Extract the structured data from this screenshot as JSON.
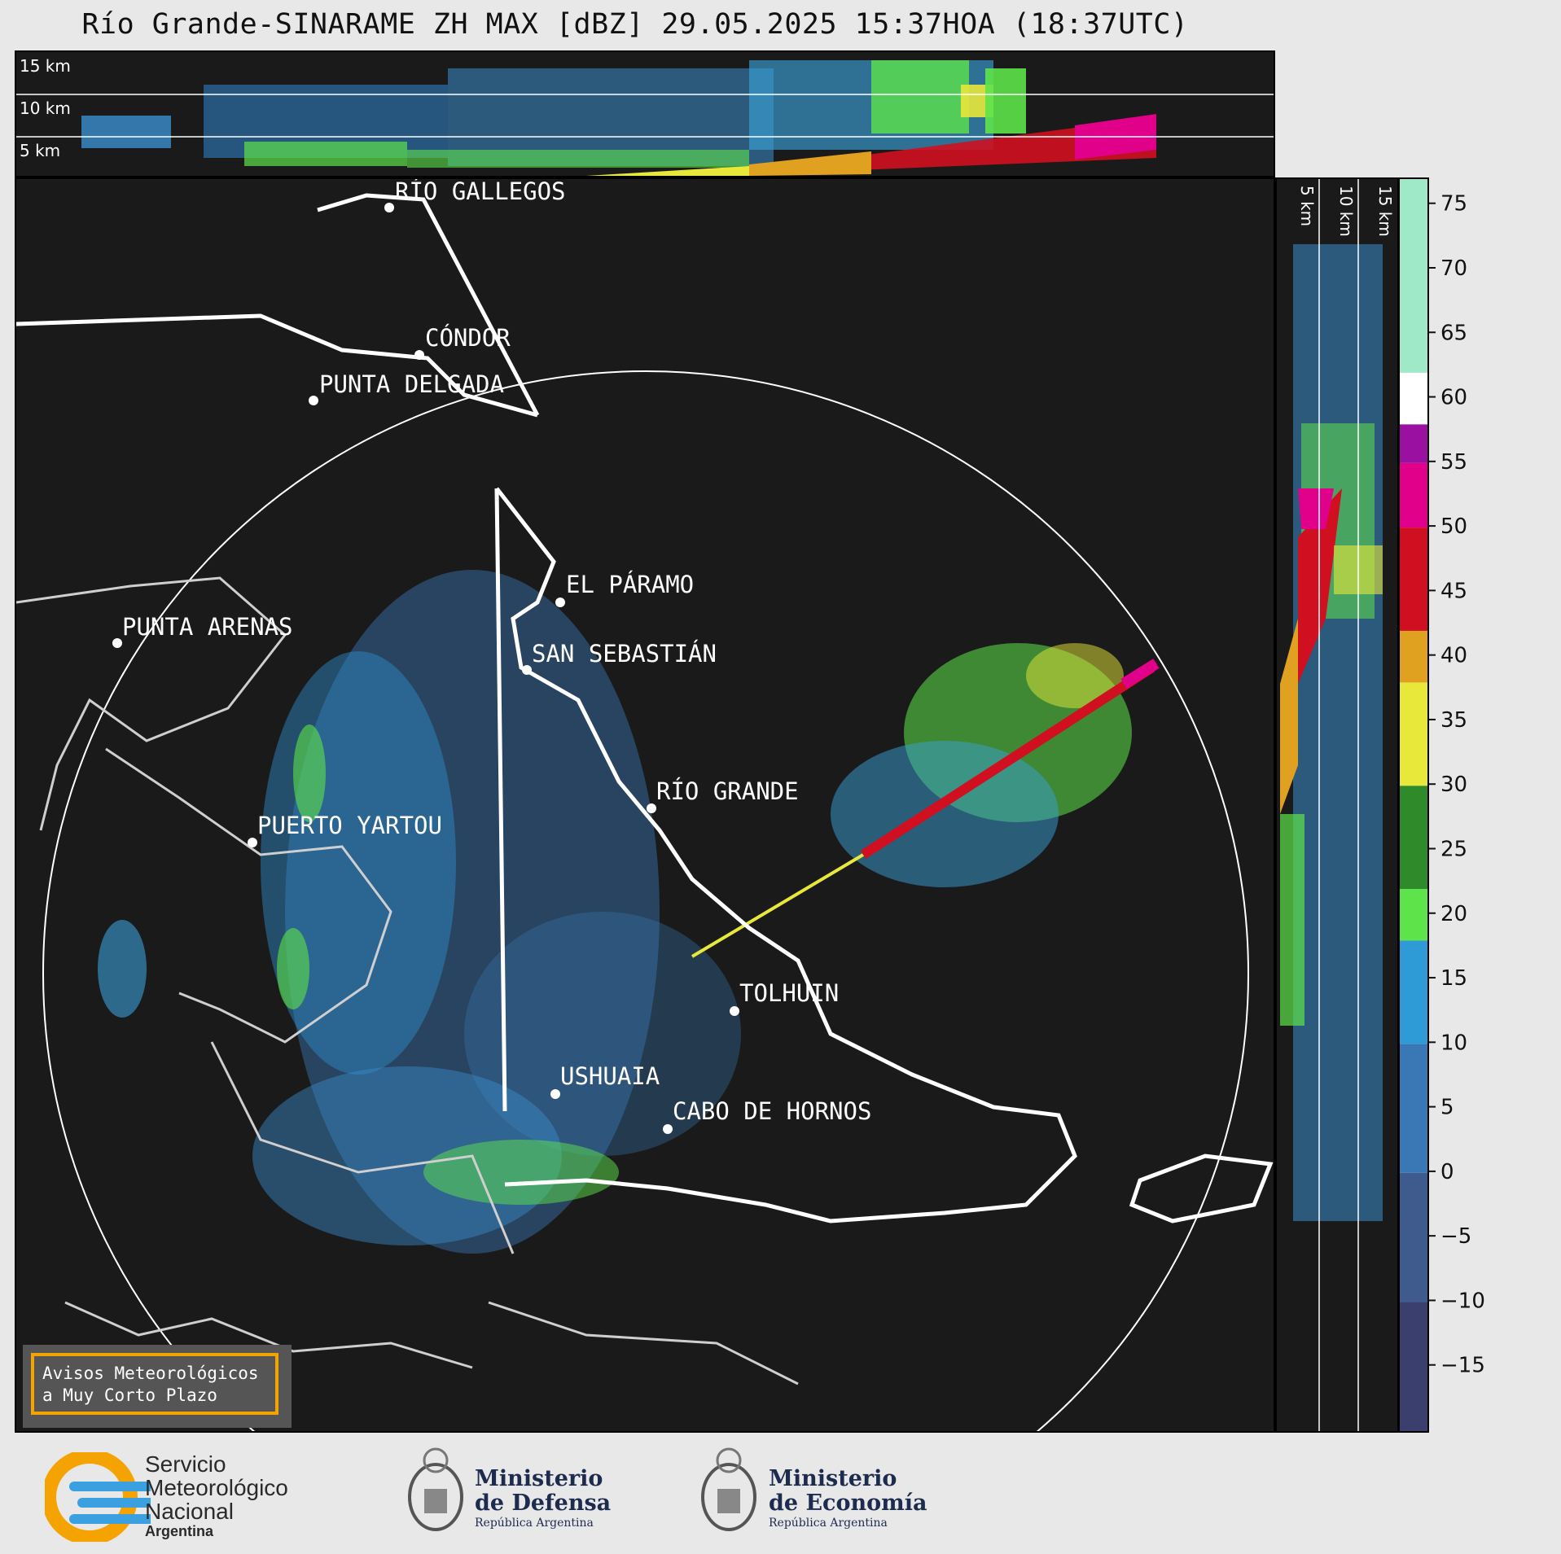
{
  "title": "Río Grande-SINARAME ZH MAX [dBZ] 29.05.2025 15:37HOA (18:37UTC)",
  "top_panel": {
    "km_labels": [
      "15 km",
      "10 km",
      "5 km"
    ]
  },
  "side_panel": {
    "km_labels": [
      "5 km",
      "10 km",
      "15 km"
    ]
  },
  "map": {
    "places": [
      {
        "name": "RÍO GALLEGOS"
      },
      {
        "name": "CÓNDOR"
      },
      {
        "name": "PUNTA DELGADA"
      },
      {
        "name": "PUNTA ARENAS"
      },
      {
        "name": "EL PÁRAMO"
      },
      {
        "name": "SAN SEBASTIÁN"
      },
      {
        "name": "RÍO GRANDE"
      },
      {
        "name": "PUERTO YARTOU"
      },
      {
        "name": "TOLHUIN"
      },
      {
        "name": "USHUAIA"
      },
      {
        "name": "CABO DE HORNOS"
      }
    ]
  },
  "colorbar": {
    "unit": "dBZ",
    "min": -20,
    "max": 77,
    "ticks": [
      75,
      70,
      65,
      60,
      55,
      50,
      45,
      40,
      35,
      30,
      25,
      20,
      15,
      10,
      5,
      0,
      -5,
      -10,
      -15
    ],
    "tick_labels": [
      "75",
      "70",
      "65",
      "60",
      "55",
      "50",
      "45",
      "40",
      "35",
      "30",
      "25",
      "20",
      "15",
      "10",
      "5",
      "0",
      "−5",
      "−10",
      "−15"
    ],
    "stops": [
      {
        "from": -20,
        "to": -10,
        "color": "#3a3f6e"
      },
      {
        "from": -10,
        "to": 0,
        "color": "#3f5a8c"
      },
      {
        "from": 0,
        "to": 10,
        "color": "#3a78b5"
      },
      {
        "from": 10,
        "to": 18,
        "color": "#2f9bd6"
      },
      {
        "from": 18,
        "to": 22,
        "color": "#5ee34a"
      },
      {
        "from": 22,
        "to": 30,
        "color": "#2f8a2a"
      },
      {
        "from": 30,
        "to": 38,
        "color": "#e8e83a"
      },
      {
        "from": 38,
        "to": 42,
        "color": "#e0a020"
      },
      {
        "from": 42,
        "to": 50,
        "color": "#d01020"
      },
      {
        "from": 50,
        "to": 55,
        "color": "#e0008a"
      },
      {
        "from": 55,
        "to": 58,
        "color": "#9a10a0"
      },
      {
        "from": 58,
        "to": 62,
        "color": "#ffffff"
      },
      {
        "from": 62,
        "to": 77,
        "color": "#9fe8c8"
      }
    ]
  },
  "warning_box": {
    "line1": "Avisos Meteorológicos",
    "line2": "a Muy Corto Plazo"
  },
  "footer": {
    "smn": {
      "line1": "Servicio",
      "line2": "Meteorológico",
      "line3": "Nacional",
      "line4": "Argentina"
    },
    "defensa": {
      "line1": "Ministerio",
      "line2": "de Defensa",
      "line3": "República Argentina"
    },
    "economia": {
      "line1": "Ministerio",
      "line2": "de Economía",
      "line3": "República Argentina"
    }
  }
}
